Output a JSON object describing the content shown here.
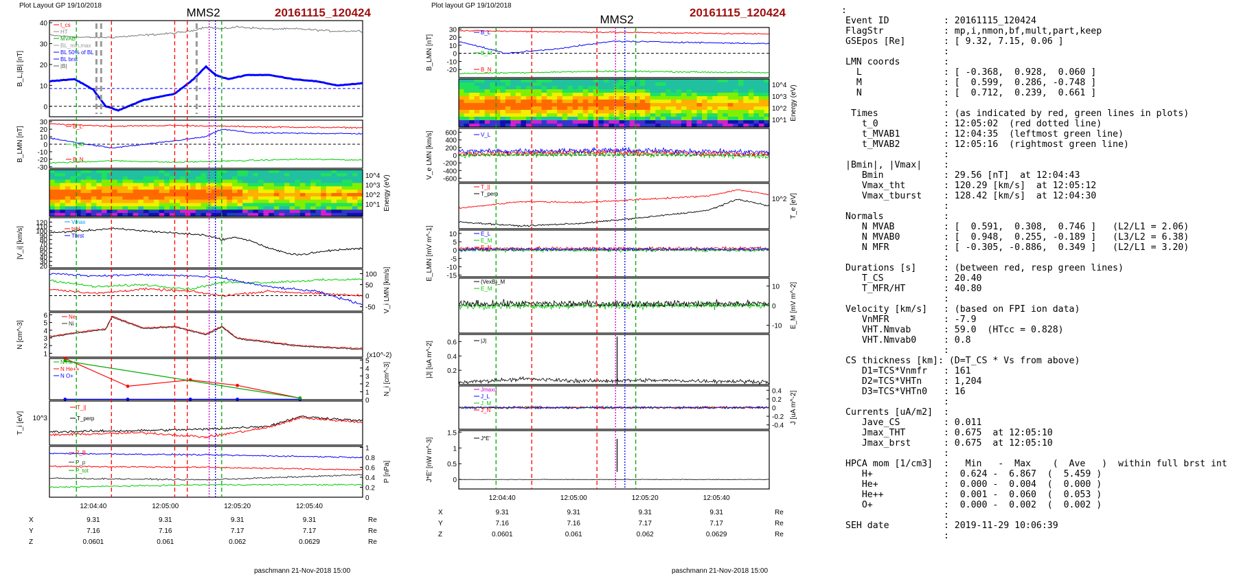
{
  "left_figure": {
    "header": "Plot Layout GP 19/10/2018",
    "spacecraft": "MMS2",
    "event": "20161115_120424",
    "footer": "paschmann 21-Nov-2018 15:00",
    "time_ticks": [
      "12:04:40",
      "12:05:00",
      "12:05:20",
      "12:05:40"
    ],
    "ephemeris": {
      "rows": [
        {
          "label": "X",
          "values": [
            "9.31",
            "9.31",
            "9.31",
            "9.31"
          ],
          "unit": "Re"
        },
        {
          "label": "Y",
          "values": [
            "7.16",
            "7.16",
            "7.17",
            "7.17"
          ],
          "unit": "Re"
        },
        {
          "label": "Z",
          "values": [
            "0.0601",
            "0.061",
            "0.062",
            "0.0629"
          ],
          "unit": "Re"
        }
      ]
    }
  },
  "right_figure": {
    "header": "Plot layout GP 19/10/2018",
    "spacecraft": "MMS2",
    "event": "20161115_120424",
    "footer": "paschmann 21-Nov-2018 15:00",
    "time_ticks": [
      "12:04:40",
      "12:05:00",
      "12:05:20",
      "12:05:40"
    ],
    "ephemeris": {
      "rows": [
        {
          "label": "X",
          "values": [
            "9.31",
            "9.31",
            "9.31",
            "9.31"
          ],
          "unit": "Re"
        },
        {
          "label": "Y",
          "values": [
            "7.16",
            "7.16",
            "7.17",
            "7.17"
          ],
          "unit": "Re"
        },
        {
          "label": "Z",
          "values": [
            "0.0601",
            "0.061",
            "0.062",
            "0.0629"
          ],
          "unit": "Re"
        }
      ]
    }
  },
  "chart_data": [
    {
      "type": "line",
      "figure": "left",
      "panel": "B_L,|B|",
      "ylabel": "B_L,|B| [nT]",
      "ylim": [
        -5,
        41
      ],
      "yticks": [
        0,
        10,
        20,
        30,
        40
      ],
      "legend": [
        "t_cs",
        "HT",
        "MVAB",
        "BL_min,max",
        "BL 50% of BL",
        "BL brst",
        "|B|"
      ],
      "series": [
        {
          "name": "|B|",
          "color": "#777777",
          "x": [
            0,
            0.1,
            0.2,
            0.3,
            0.4,
            0.45,
            0.5,
            0.55,
            0.6,
            0.7,
            0.8,
            0.9,
            1.0
          ],
          "values": [
            34,
            33,
            33,
            34,
            35,
            36,
            38,
            37,
            38,
            37,
            37,
            36,
            36
          ]
        },
        {
          "name": "BL brst",
          "color": "#0000ff",
          "x": [
            0,
            0.08,
            0.14,
            0.18,
            0.22,
            0.3,
            0.4,
            0.46,
            0.5,
            0.53,
            0.57,
            0.63,
            0.7,
            0.78,
            0.85,
            0.92,
            1.0
          ],
          "values": [
            12,
            13,
            8,
            0,
            -2,
            3,
            6,
            13,
            19,
            15,
            13,
            15,
            15,
            13,
            12,
            10,
            11
          ]
        }
      ],
      "reference_lines": [
        {
          "name": "BL 50% of BL",
          "value": 8.5
        },
        {
          "name": "zero",
          "value": 0
        }
      ]
    },
    {
      "type": "line",
      "figure": "left",
      "panel": "B_LMN",
      "ylabel": "B_LMN [nT]",
      "ylim": [
        -32,
        32
      ],
      "yticks": [
        -30,
        -20,
        -10,
        0,
        10,
        20,
        30
      ],
      "series": [
        {
          "name": "B_L",
          "color": "#ff0000",
          "x": [
            0,
            0.2,
            0.4,
            0.55,
            0.7,
            1.0
          ],
          "values": [
            27,
            24,
            25,
            24,
            23,
            22
          ]
        },
        {
          "name": "B_M",
          "color": "#0000ff",
          "x": [
            0,
            0.15,
            0.2,
            0.35,
            0.5,
            0.55,
            0.65,
            1.0
          ],
          "values": [
            8,
            -2,
            -5,
            2,
            10,
            20,
            15,
            14
          ]
        },
        {
          "name": "B_N",
          "color": "#00cc00",
          "x": [
            0,
            0.2,
            0.4,
            0.6,
            0.8,
            1.0
          ],
          "values": [
            -25,
            -22,
            -24,
            -22,
            -20,
            -21
          ]
        }
      ]
    },
    {
      "type": "heatmap",
      "figure": "left",
      "panel": "ion spectrogram",
      "ylabel": "Energy (eV)",
      "yticks": [
        "10^1",
        "10^2",
        "10^3",
        "10^4"
      ]
    },
    {
      "type": "line",
      "figure": "left",
      "panel": "|V_i|",
      "ylabel": "|V_i| [km/s]",
      "ylim": [
        15,
        130
      ],
      "yticks": [
        20,
        30,
        40,
        50,
        60,
        70,
        80,
        90,
        100,
        110,
        120
      ],
      "legend": [
        "Vmax",
        "tsel",
        "Tbrst"
      ],
      "series": [
        {
          "name": "|V_i|",
          "color": "#000000",
          "x": [
            0,
            0.1,
            0.2,
            0.3,
            0.4,
            0.5,
            0.55,
            0.6,
            0.65,
            0.7,
            0.75,
            0.8,
            0.9,
            1.0
          ],
          "values": [
            95,
            100,
            105,
            100,
            95,
            90,
            80,
            85,
            75,
            60,
            50,
            45,
            55,
            60
          ]
        }
      ]
    },
    {
      "type": "line",
      "figure": "left",
      "panel": "V_i LMN",
      "ylabel": "V_i LMN [km/s]",
      "ylim": [
        -70,
        120
      ],
      "yticks": [
        -50,
        0,
        50,
        100
      ],
      "series": [
        {
          "name": "V_L",
          "color": "#ff0000",
          "x": [
            0,
            0.15,
            0.3,
            0.45,
            0.55,
            0.7,
            0.85,
            1.0
          ],
          "values": [
            30,
            10,
            30,
            20,
            0,
            20,
            10,
            0
          ]
        },
        {
          "name": "V_M",
          "color": "#00cc00",
          "x": [
            0,
            0.15,
            0.3,
            0.45,
            0.55,
            0.7,
            0.85,
            1.0
          ],
          "values": [
            70,
            40,
            50,
            30,
            60,
            60,
            70,
            75
          ]
        },
        {
          "name": "V_N",
          "color": "#0000ff",
          "x": [
            0,
            0.15,
            0.3,
            0.45,
            0.55,
            0.7,
            0.85,
            1.0
          ],
          "values": [
            100,
            90,
            95,
            90,
            80,
            40,
            20,
            -40
          ]
        }
      ]
    },
    {
      "type": "line",
      "figure": "left",
      "panel": "N",
      "ylabel": "N [cm^-3]",
      "ylim": [
        0.5,
        6.3
      ],
      "yticks": [
        1,
        2,
        3,
        4,
        5,
        6
      ],
      "series": [
        {
          "name": "Ne",
          "color": "#ff0000",
          "x": [
            0,
            0.1,
            0.18,
            0.2,
            0.3,
            0.4,
            0.5,
            0.55,
            0.6,
            0.7,
            0.8,
            0.9,
            1.0
          ],
          "values": [
            3.2,
            3.8,
            4.2,
            5.8,
            4.3,
            4.5,
            3.5,
            4.5,
            3.0,
            2.5,
            2.0,
            1.8,
            1.6
          ]
        },
        {
          "name": "Ni",
          "color": "#333333",
          "x": [
            0,
            0.1,
            0.18,
            0.2,
            0.3,
            0.4,
            0.5,
            0.55,
            0.6,
            0.7,
            0.8,
            0.9,
            1.0
          ],
          "values": [
            3.1,
            3.7,
            4.1,
            5.7,
            4.2,
            4.4,
            3.4,
            4.4,
            2.9,
            2.4,
            1.9,
            1.7,
            1.5
          ]
        }
      ]
    },
    {
      "type": "line",
      "figure": "left",
      "panel": "N_i minor ions",
      "ylabel": "N_i [cm^-3]",
      "ylim": [
        0,
        5.2
      ],
      "yticks": [
        0,
        1,
        2,
        3,
        4,
        5
      ],
      "note": "(x10^-2)",
      "series": [
        {
          "name": "N He++",
          "color": "#ff0000",
          "x": [
            0.05,
            0.25,
            0.45,
            0.6,
            0.8
          ],
          "values": [
            5.2,
            1.7,
            2.5,
            1.8,
            0.2
          ]
        },
        {
          "name": "N O+",
          "color": "#0000ff",
          "x": [
            0.05,
            0.25,
            0.45,
            0.6,
            0.8
          ],
          "values": [
            0.05,
            0.05,
            0.05,
            0.05,
            0.05
          ]
        },
        {
          "name": "N He+",
          "color": "#00aa00",
          "x": [
            0.05,
            0.8
          ],
          "values": [
            4.9,
            0.2
          ]
        }
      ]
    },
    {
      "type": "line",
      "figure": "left",
      "panel": "T_i",
      "ylabel": "T_i [eV]",
      "yticks": [
        "10^3"
      ],
      "series": [
        {
          "name": "T_||",
          "color": "#ff0000"
        },
        {
          "name": "T_perp",
          "color": "#000000"
        }
      ]
    },
    {
      "type": "line",
      "figure": "left",
      "panel": "P",
      "ylabel": "P [nPa]",
      "ylim": [
        0,
        1.02
      ],
      "yticks": [
        0.0,
        0.2,
        0.4,
        0.6,
        0.8,
        1.0
      ],
      "series": [
        {
          "name": "P_B",
          "color": "#ff0000",
          "x": [
            0,
            0.5,
            1.0
          ],
          "values": [
            0.62,
            0.6,
            0.55
          ]
        },
        {
          "name": "P_p",
          "color": "#333333",
          "x": [
            0,
            0.5,
            1.0
          ],
          "values": [
            0.38,
            0.35,
            0.45
          ]
        },
        {
          "name": "P_tot",
          "color": "#00cc00",
          "x": [
            0,
            0.5,
            1.0
          ],
          "values": [
            0.2,
            0.25,
            0.25
          ]
        },
        {
          "name": "blue",
          "color": "#0000ff",
          "x": [
            0,
            0.5,
            1.0
          ],
          "values": [
            0.88,
            0.85,
            0.8
          ]
        }
      ]
    },
    {
      "type": "line",
      "figure": "right",
      "panel": "B_LMN",
      "ylabel": "B_LMN [nT]",
      "ylim": [
        -30,
        32
      ],
      "yticks": [
        -20,
        -10,
        0,
        10,
        20,
        30
      ],
      "series": [
        {
          "name": "B_L",
          "color": "#ff0000",
          "x": [
            0,
            0.5,
            1.0
          ],
          "values": [
            28,
            26,
            24
          ]
        },
        {
          "name": "B_M",
          "color": "#0000ff",
          "x": [
            0,
            0.15,
            0.3,
            0.5,
            1.0
          ],
          "values": [
            15,
            0,
            5,
            15,
            12
          ]
        },
        {
          "name": "B_N",
          "color": "#00cc00",
          "x": [
            0,
            0.5,
            1.0
          ],
          "values": [
            -25,
            -22,
            -24
          ]
        }
      ]
    },
    {
      "type": "heatmap",
      "figure": "right",
      "panel": "electron spectrogram",
      "ylabel": "Energy (eV)",
      "yticks": [
        "10^1",
        "10^2",
        "10^3",
        "10^4"
      ]
    },
    {
      "type": "line",
      "figure": "right",
      "panel": "V_e LMN",
      "ylabel": "V_e LMN [km/s]",
      "ylim": [
        -700,
        700
      ],
      "yticks": [
        -600,
        -400,
        -200,
        0,
        200,
        400,
        600
      ],
      "series": [
        {
          "name": "V_L",
          "color": "#ff0000"
        },
        {
          "name": "V_M",
          "color": "#00cc00"
        },
        {
          "name": "V_N",
          "color": "#0000ff"
        }
      ]
    },
    {
      "type": "line",
      "figure": "right",
      "panel": "T_e",
      "ylabel": "T_e [eV]",
      "yticks": [
        "10^2"
      ],
      "series": [
        {
          "name": "T_||",
          "color": "#ff0000"
        },
        {
          "name": "T_perp",
          "color": "#000000"
        }
      ]
    },
    {
      "type": "line",
      "figure": "right",
      "panel": "E_LMN",
      "ylabel": "E_LMN [mV m^-1]",
      "ylim": [
        -16,
        12
      ],
      "yticks": [
        -15,
        -10,
        -5,
        0,
        5,
        10
      ],
      "series": [
        {
          "name": "E_L",
          "color": "#0000ff"
        },
        {
          "name": "E_M",
          "color": "#00cc00"
        },
        {
          "name": "E_N",
          "color": "#ff0000"
        }
      ]
    },
    {
      "type": "line",
      "figure": "right",
      "panel": "E_M",
      "ylabel": "E_M [mV m^-2]",
      "ylim": [
        -14,
        14
      ],
      "yticks": [
        -10,
        0,
        10
      ],
      "series": [
        {
          "name": "(VexB)_M",
          "color": "#000000"
        },
        {
          "name": "E_M",
          "color": "#00cc00"
        }
      ]
    },
    {
      "type": "line",
      "figure": "right",
      "panel": "|J|",
      "ylabel": "|J| [uA m^-2]",
      "ylim": [
        0,
        0.7
      ],
      "yticks": [
        0.2,
        0.4,
        0.6
      ],
      "series": [
        {
          "name": "|J|",
          "color": "#000000"
        }
      ]
    },
    {
      "type": "line",
      "figure": "right",
      "panel": "J_LMN",
      "ylabel": "J [uA m^-2]",
      "ylim": [
        -0.5,
        0.5
      ],
      "yticks": [
        -0.4,
        -0.2,
        0.0,
        0.2,
        0.4
      ],
      "legend": [
        "Jmaxu",
        "J_L",
        "J_M",
        "J_N"
      ],
      "series": [
        {
          "name": "J_L",
          "color": "#0000ff"
        },
        {
          "name": "J_M",
          "color": "#00cc00"
        },
        {
          "name": "J_N",
          "color": "#ff0000"
        }
      ]
    },
    {
      "type": "line",
      "figure": "right",
      "panel": "J*E'",
      "ylabel": "J*E' [nW m^-3]",
      "ylim": [
        -0.3,
        1.55
      ],
      "yticks": [
        0.0,
        0.5,
        1.0,
        1.5
      ],
      "series": [
        {
          "name": "J*E'",
          "color": "#000000"
        }
      ]
    }
  ],
  "info_panel": {
    "colon_top": ":",
    "lines": [
      "Event ID          : 20161115_120424",
      "FlagStr           : mp,i,nmon,bf,mult,part,keep",
      "GSEpos [Re]       : [ 9.32, 7.15, 0.06 ]",
      "                  :",
      "LMN coords        :",
      "  L               : [ -0.368,  0.928,  0.060 ]",
      "  M               : [  0.599,  0.286, -0.748 ]",
      "  N               : [  0.712,  0.239,  0.661 ]",
      "                  :",
      " Times            : (as indicated by red, green lines in plots)",
      "   t_0            : 12:05:02  (red dotted line)",
      "   t_MVAB1        : 12:04:35  (leftmost green line)",
      "   t_MVAB2        : 12:05:16  (rightmost green line)",
      "                  :",
      "|Bmin|, |Vmax|    :",
      "   Bmin           : 29.56 [nT]  at 12:04:43",
      "   Vmax_tht       : 120.29 [km/s]  at 12:05:12",
      "   Vmax_tburst    : 128.42 [km/s]  at 12:04:30",
      "                  :",
      "Normals           :",
      "   N MVAB         : [  0.591,  0.308,  0.746 ]   (L2/L1 = 2.06)",
      "   N MVAB0        : [  0.948,  0.255, -0.189 ]   (L3/L2 = 6.38)",
      "   N MFR          : [ -0.305, -0.886,  0.349 ]   (L2/L1 = 3.20)",
      "                  :",
      "Durations [s]     : (between red, resp green lines)",
      "   T_CS           : 20.40",
      "   T_MFR/HT       : 40.80",
      "                  :",
      "Velocity [km/s]   : (based on FPI ion data)",
      "   VnMFR          : -7.9",
      "   VHT.Nmvab      : 59.0  (HTcc = 0.828)",
      "   VHT.Nmvab0     : 0.8",
      "                  :",
      "CS thickness [km]: (D=T_CS * Vs from above)",
      "   D1=TCS*Vnmfr   : 161",
      "   D2=TCS*VHTn    : 1,204",
      "   D3=TCS*VHTn0   : 16",
      "                  :",
      "Currents [uA/m2]  :",
      "   Jave_CS        : 0.011",
      "   Jmax_THT       : 0.675  at 12:05:10",
      "   Jmax_brst      : 0.675  at 12:05:10",
      "                  :",
      "HPCA mom [1/cm3]  :   Min   -  Max    (  Ave   )  within full brst int",
      "   H+             :  0.624 -  6.867  (  5.459 )",
      "   He+            :  0.000 -  0.004  (  0.000 )",
      "   He++           :  0.001 -  0.060  (  0.053 )",
      "   O+             :  0.000 -  0.002  (  0.002 )",
      "                  :",
      "SEH date          : 2019-11-29 10:06:39",
      "                  :"
    ]
  }
}
